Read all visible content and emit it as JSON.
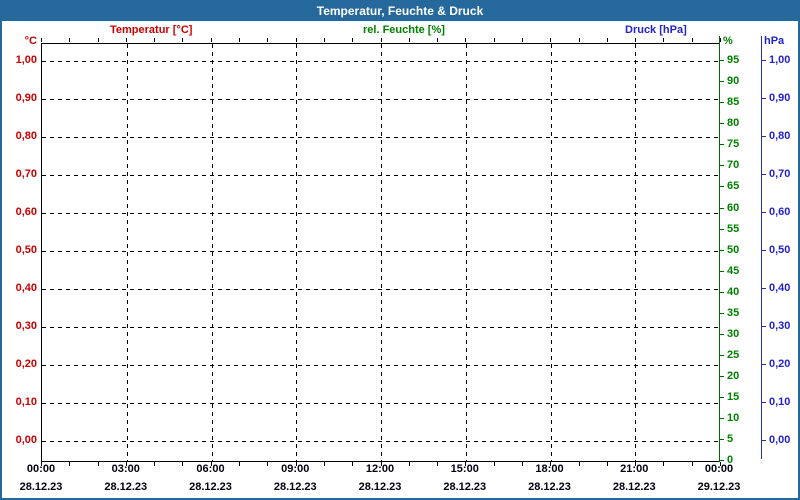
{
  "header": {
    "title": "Temperatur, Feuchte & Druck"
  },
  "legend": {
    "temperature": "Temperatur [°C]",
    "humidity": "rel. Feuchte [%]",
    "pressure": "Druck [hPa]"
  },
  "colors": {
    "frame_blue": "#25689b",
    "temperature_red": "#cc0000",
    "humidity_green": "#008000",
    "humidity_axis_dark_green": "#006600",
    "pressure_blue": "#2323c8",
    "grid_black": "#000000",
    "background_white": "#ffffff"
  },
  "chart_data": {
    "type": "line",
    "title": "Temperatur, Feuchte & Druck",
    "series": [
      {
        "name": "Temperatur [°C]",
        "unit": "°C",
        "color": "#cc0000",
        "values": []
      },
      {
        "name": "rel. Feuchte [%]",
        "unit": "%",
        "color": "#008000",
        "values": []
      },
      {
        "name": "Druck [hPa]",
        "unit": "hPa",
        "color": "#2323c8",
        "values": []
      }
    ],
    "no_data_plotted": true,
    "x_axis": {
      "start": "28.12.23 00:00",
      "end": "29.12.23 00:00",
      "total_hours": 24,
      "minor_tick_interval_hours": 1,
      "major_tick_interval_hours": 3,
      "major_ticks": [
        {
          "time": "00:00",
          "date": "28.12.23"
        },
        {
          "time": "03:00",
          "date": "28.12.23"
        },
        {
          "time": "06:00",
          "date": "28.12.23"
        },
        {
          "time": "09:00",
          "date": "28.12.23"
        },
        {
          "time": "12:00",
          "date": "28.12.23"
        },
        {
          "time": "15:00",
          "date": "28.12.23"
        },
        {
          "time": "18:00",
          "date": "28.12.23"
        },
        {
          "time": "21:00",
          "date": "28.12.23"
        },
        {
          "time": "00:00",
          "date": "29.12.23"
        }
      ]
    },
    "axes": {
      "temperature": {
        "unit_label": "°C",
        "side": "left",
        "plot_top_value": 1.046,
        "plot_bottom_value": -0.054,
        "ticks": [
          {
            "label": "1,00",
            "value": 1.0
          },
          {
            "label": "0,90",
            "value": 0.9
          },
          {
            "label": "0,80",
            "value": 0.8
          },
          {
            "label": "0,70",
            "value": 0.7
          },
          {
            "label": "0,60",
            "value": 0.6
          },
          {
            "label": "0,50",
            "value": 0.5
          },
          {
            "label": "0,40",
            "value": 0.4
          },
          {
            "label": "0,30",
            "value": 0.3
          },
          {
            "label": "0,20",
            "value": 0.2
          },
          {
            "label": "0,10",
            "value": 0.1
          },
          {
            "label": "0,00",
            "value": 0.0
          }
        ]
      },
      "humidity": {
        "unit_label": "%",
        "side": "right-inner",
        "plot_top_value": 99.1,
        "plot_bottom_value": -0.25,
        "ticks": [
          {
            "label": "95",
            "value": 95
          },
          {
            "label": "90",
            "value": 90
          },
          {
            "label": "85",
            "value": 85
          },
          {
            "label": "80",
            "value": 80
          },
          {
            "label": "75",
            "value": 75
          },
          {
            "label": "70",
            "value": 70
          },
          {
            "label": "65",
            "value": 65
          },
          {
            "label": "60",
            "value": 60
          },
          {
            "label": "55",
            "value": 55
          },
          {
            "label": "50",
            "value": 50
          },
          {
            "label": "45",
            "value": 45
          },
          {
            "label": "40",
            "value": 40
          },
          {
            "label": "35",
            "value": 35
          },
          {
            "label": "30",
            "value": 30
          },
          {
            "label": "25",
            "value": 25
          },
          {
            "label": "20",
            "value": 20
          },
          {
            "label": "15",
            "value": 15
          },
          {
            "label": "10",
            "value": 10
          },
          {
            "label": "5",
            "value": 5
          },
          {
            "label": "0",
            "value": 0
          }
        ]
      },
      "pressure": {
        "unit_label": "hPa",
        "side": "right-outer",
        "plot_top_value": 1.046,
        "plot_bottom_value": -0.054,
        "ticks": [
          {
            "label": "1,00",
            "value": 1.0
          },
          {
            "label": "0,90",
            "value": 0.9
          },
          {
            "label": "0,80",
            "value": 0.8
          },
          {
            "label": "0,70",
            "value": 0.7
          },
          {
            "label": "0,60",
            "value": 0.6
          },
          {
            "label": "0,50",
            "value": 0.5
          },
          {
            "label": "0,40",
            "value": 0.4
          },
          {
            "label": "0,30",
            "value": 0.3
          },
          {
            "label": "0,20",
            "value": 0.2
          },
          {
            "label": "0,10",
            "value": 0.1
          },
          {
            "label": "0,00",
            "value": 0.0
          }
        ]
      }
    },
    "grid": {
      "style": "dashed",
      "color": "#000000",
      "h_lines_follow_axis": "temperature",
      "v_hours": [
        3,
        6,
        9,
        12,
        15,
        18,
        21
      ]
    }
  }
}
